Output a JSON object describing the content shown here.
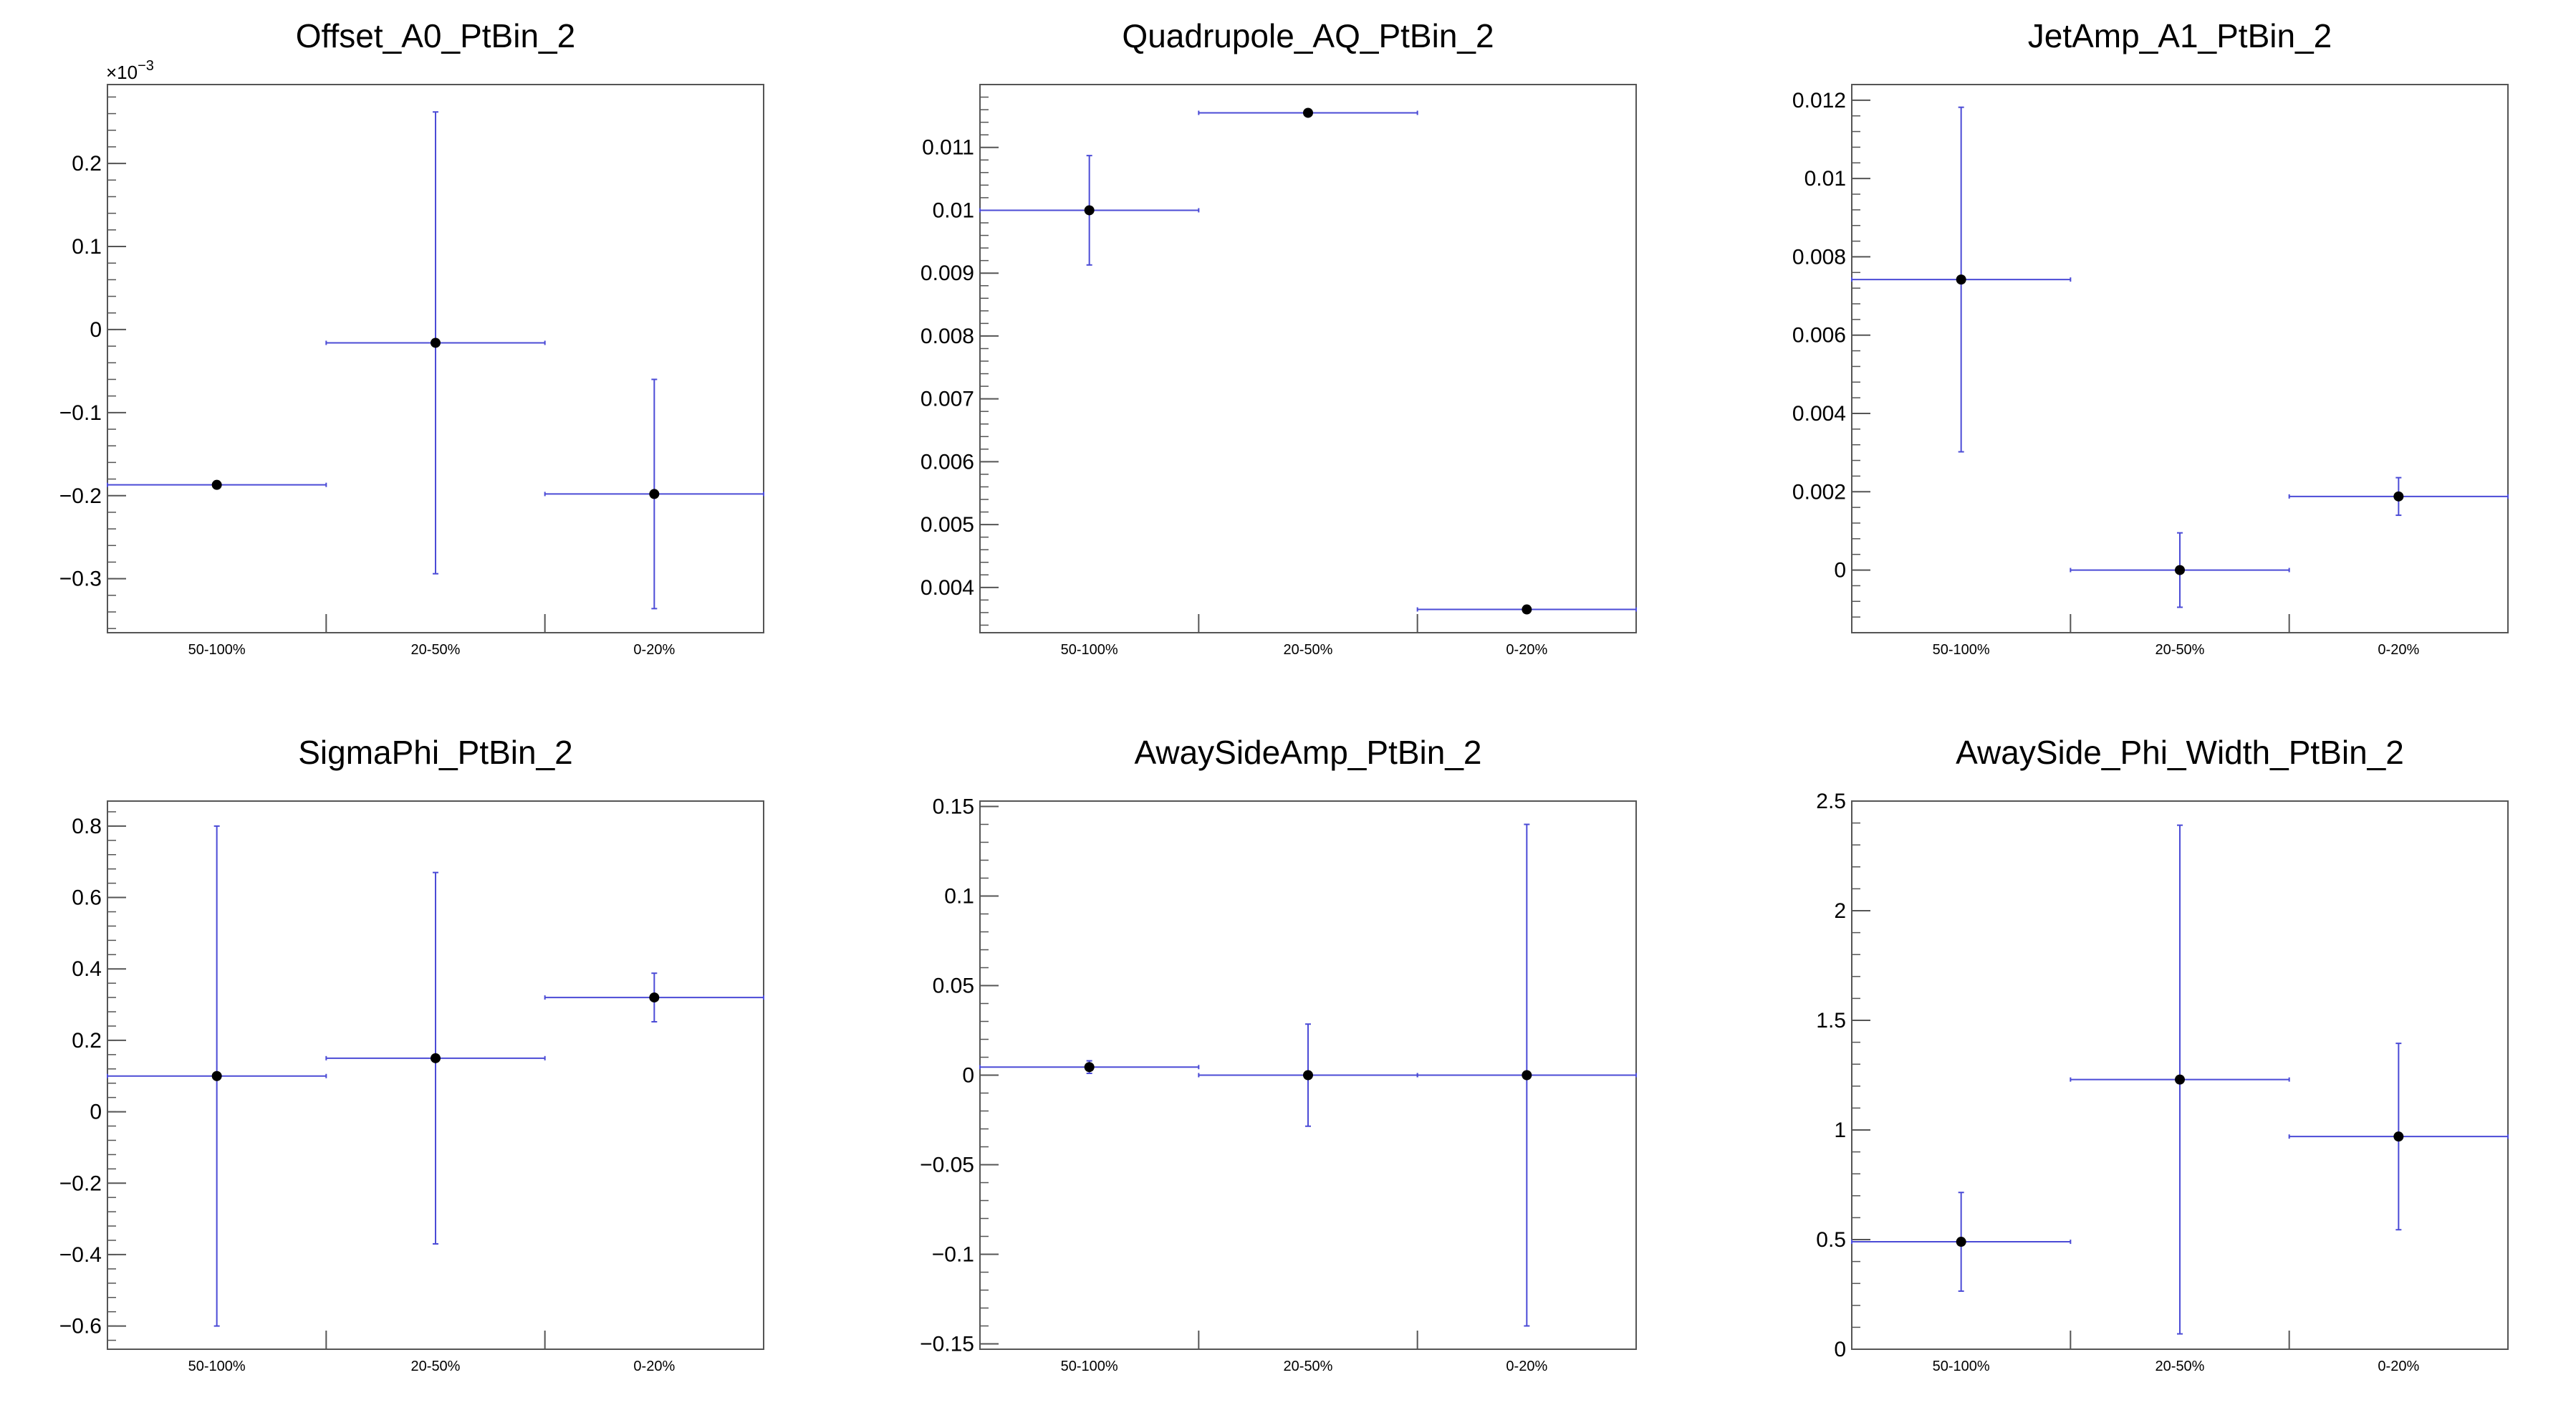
{
  "chart_data": [
    {
      "type": "scatter",
      "title": "Offset_A0_PtBin_2",
      "categories": [
        "50-100%",
        "20-50%",
        "0-20%"
      ],
      "ylim": [
        -0.000365,
        0.000295
      ],
      "yticks": [
        -0.0003,
        -0.0002,
        -0.0001,
        0,
        0.0001,
        0.0002
      ],
      "ytick_labels": [
        "−0.3",
        "−0.2",
        "−0.1",
        "0",
        "0.1",
        "0.2"
      ],
      "y_exponent": "×10",
      "y_exponent_power": "−3",
      "minor_step": 2e-05,
      "values": [
        -0.000187,
        -1.6e-05,
        -0.000198
      ],
      "errors": [
        0,
        0.000278,
        0.000138
      ]
    },
    {
      "type": "scatter",
      "title": "Quadrupole_AQ_PtBin_2",
      "categories": [
        "50-100%",
        "20-50%",
        "0-20%"
      ],
      "ylim": [
        0.00328,
        0.012
      ],
      "yticks": [
        0.004,
        0.005,
        0.006,
        0.007,
        0.008,
        0.009,
        0.01,
        0.011
      ],
      "ytick_labels": [
        "0.004",
        "0.005",
        "0.006",
        "0.007",
        "0.008",
        "0.009",
        "0.01",
        "0.011"
      ],
      "minor_step": 0.0002,
      "values": [
        0.01,
        0.01155,
        0.00365
      ],
      "errors": [
        0.00087,
        0,
        0
      ]
    },
    {
      "type": "scatter",
      "title": "JetAmp_A1_PtBin_2",
      "categories": [
        "50-100%",
        "20-50%",
        "0-20%"
      ],
      "ylim": [
        -0.0016,
        0.0124
      ],
      "yticks": [
        0,
        0.002,
        0.004,
        0.006,
        0.008,
        0.01,
        0.012
      ],
      "ytick_labels": [
        "0",
        "0.002",
        "0.004",
        "0.006",
        "0.008",
        "0.01",
        "0.012"
      ],
      "minor_step": 0.0004,
      "values": [
        0.00742,
        0.0,
        0.00188
      ],
      "errors": [
        0.0044,
        0.00095,
        0.00048
      ]
    },
    {
      "type": "scatter",
      "title": "SigmaPhi_PtBin_2",
      "categories": [
        "50-100%",
        "20-50%",
        "0-20%"
      ],
      "ylim": [
        -0.665,
        0.87
      ],
      "yticks": [
        -0.6,
        -0.4,
        -0.2,
        0,
        0.2,
        0.4,
        0.6,
        0.8
      ],
      "ytick_labels": [
        "−0.6",
        "−0.4",
        "−0.2",
        "0",
        "0.2",
        "0.4",
        "0.6",
        "0.8"
      ],
      "minor_step": 0.04,
      "values": [
        0.1,
        0.15,
        0.32
      ],
      "errors": [
        0.7,
        0.52,
        0.068
      ]
    },
    {
      "type": "scatter",
      "title": "AwaySideAmp_PtBin_2",
      "categories": [
        "50-100%",
        "20-50%",
        "0-20%"
      ],
      "ylim": [
        -0.153,
        0.153
      ],
      "yticks": [
        -0.15,
        -0.1,
        -0.05,
        0,
        0.05,
        0.1,
        0.15
      ],
      "ytick_labels": [
        "−0.15",
        "−0.1",
        "−0.05",
        "0",
        "0.05",
        "0.1",
        "0.15"
      ],
      "minor_step": 0.01,
      "values": [
        0.0045,
        0.0,
        0.0
      ],
      "errors": [
        0.0035,
        0.0285,
        0.14
      ]
    },
    {
      "type": "scatter",
      "title": "AwaySide_Phi_Width_PtBin_2",
      "categories": [
        "50-100%",
        "20-50%",
        "0-20%"
      ],
      "ylim": [
        0,
        2.5
      ],
      "yticks": [
        0,
        0.5,
        1,
        1.5,
        2,
        2.5
      ],
      "ytick_labels": [
        "0",
        "0.5",
        "1",
        "1.5",
        "2",
        "2.5"
      ],
      "minor_step": 0.1,
      "values": [
        0.49,
        1.23,
        0.97
      ],
      "errors": [
        0.225,
        1.16,
        0.425
      ]
    }
  ],
  "colors": {
    "errorbar": "#4b4bd6",
    "marker": "#000000",
    "frame": "#555555"
  }
}
